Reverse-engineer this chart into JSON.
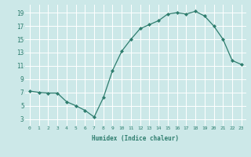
{
  "x": [
    0,
    1,
    2,
    3,
    4,
    5,
    6,
    7,
    8,
    9,
    10,
    11,
    12,
    13,
    14,
    15,
    16,
    17,
    18,
    19,
    20,
    21,
    22,
    23
  ],
  "y": [
    7.2,
    7.0,
    6.9,
    6.9,
    5.6,
    5.0,
    4.3,
    3.3,
    6.2,
    10.3,
    13.2,
    15.0,
    16.6,
    17.2,
    17.8,
    18.8,
    19.0,
    18.8,
    19.2,
    18.5,
    17.0,
    15.0,
    11.8,
    11.2
  ],
  "line_color": "#2e7d6e",
  "marker_color": "#2e7d6e",
  "bg_color": "#cce8e8",
  "grid_color": "#ffffff",
  "xlabel": "Humidex (Indice chaleur)",
  "xlim": [
    -0.5,
    23.5
  ],
  "ylim": [
    2.0,
    20.2
  ],
  "yticks": [
    3,
    5,
    7,
    9,
    11,
    13,
    15,
    17,
    19
  ],
  "xticks": [
    0,
    1,
    2,
    3,
    4,
    5,
    6,
    7,
    8,
    9,
    10,
    11,
    12,
    13,
    14,
    15,
    16,
    17,
    18,
    19,
    20,
    21,
    22,
    23
  ],
  "tick_color": "#2e7d6e",
  "label_color": "#2e7d6e"
}
